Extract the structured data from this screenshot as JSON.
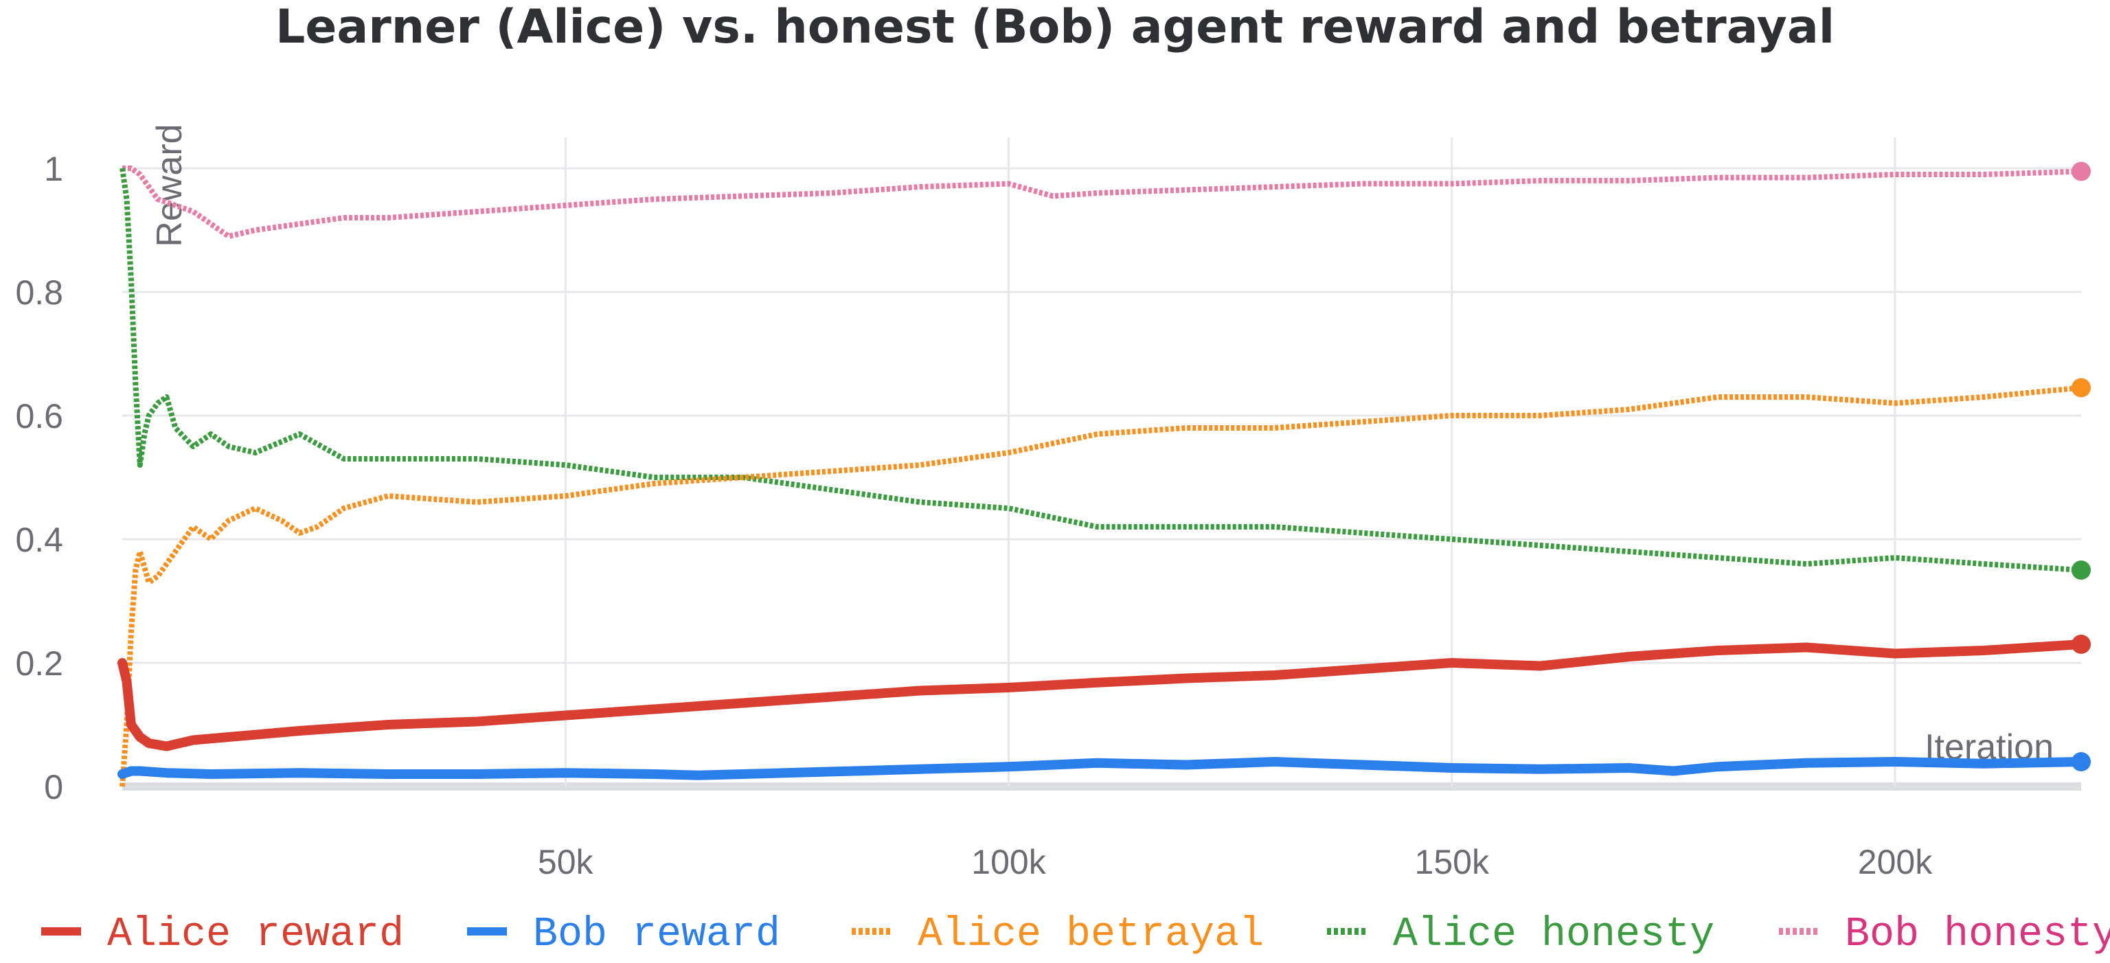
{
  "chart_data": {
    "type": "line",
    "title": "Learner (Alice) vs. honest (Bob) agent reward and betrayal",
    "ylabel": "Reward",
    "xlabel": "Iteration",
    "xlim": [
      0,
      221000
    ],
    "ylim": [
      0,
      1.05
    ],
    "x_ticks": [
      {
        "value": 50000,
        "label": "50k"
      },
      {
        "value": 100000,
        "label": "100k"
      },
      {
        "value": 150000,
        "label": "150k"
      },
      {
        "value": 200000,
        "label": "200k"
      }
    ],
    "y_ticks": [
      {
        "value": 0,
        "label": "0"
      },
      {
        "value": 0.2,
        "label": "0.2"
      },
      {
        "value": 0.4,
        "label": "0.4"
      },
      {
        "value": 0.6,
        "label": "0.6"
      },
      {
        "value": 0.8,
        "label": "0.8"
      },
      {
        "value": 1,
        "label": "1"
      }
    ],
    "grid": true,
    "legend_position": "bottom",
    "series": [
      {
        "name": "Alice reward",
        "color": "#d93f31",
        "style": "solid",
        "x": [
          0,
          500,
          1000,
          2000,
          3000,
          5000,
          8000,
          12000,
          20000,
          30000,
          40000,
          50000,
          60000,
          70000,
          80000,
          90000,
          100000,
          110000,
          120000,
          130000,
          140000,
          150000,
          160000,
          170000,
          180000,
          190000,
          200000,
          210000,
          221000
        ],
        "y": [
          0.2,
          0.17,
          0.1,
          0.08,
          0.07,
          0.065,
          0.075,
          0.08,
          0.09,
          0.1,
          0.105,
          0.115,
          0.125,
          0.135,
          0.145,
          0.155,
          0.16,
          0.168,
          0.175,
          0.18,
          0.19,
          0.2,
          0.195,
          0.21,
          0.22,
          0.225,
          0.215,
          0.22,
          0.23
        ]
      },
      {
        "name": "Bob reward",
        "color": "#2b7fea",
        "style": "solid",
        "x": [
          0,
          1000,
          2000,
          5000,
          10000,
          20000,
          30000,
          40000,
          50000,
          60000,
          65000,
          70000,
          80000,
          90000,
          100000,
          110000,
          120000,
          130000,
          140000,
          150000,
          160000,
          170000,
          175000,
          180000,
          190000,
          200000,
          210000,
          221000
        ],
        "y": [
          0.02,
          0.025,
          0.025,
          0.022,
          0.02,
          0.022,
          0.02,
          0.02,
          0.022,
          0.02,
          0.018,
          0.02,
          0.024,
          0.028,
          0.032,
          0.038,
          0.035,
          0.04,
          0.035,
          0.03,
          0.028,
          0.03,
          0.025,
          0.032,
          0.038,
          0.04,
          0.037,
          0.04
        ]
      },
      {
        "name": "Alice betrayal",
        "color": "#f7901e",
        "style": "dotted",
        "x": [
          0,
          500,
          1000,
          1500,
          2000,
          3000,
          4000,
          6000,
          8000,
          10000,
          12000,
          15000,
          18000,
          20000,
          22000,
          25000,
          30000,
          40000,
          50000,
          60000,
          70000,
          80000,
          90000,
          100000,
          110000,
          120000,
          130000,
          140000,
          150000,
          160000,
          170000,
          180000,
          190000,
          200000,
          210000,
          221000
        ],
        "y": [
          0,
          0.1,
          0.25,
          0.35,
          0.38,
          0.33,
          0.34,
          0.38,
          0.42,
          0.4,
          0.43,
          0.45,
          0.43,
          0.41,
          0.42,
          0.45,
          0.47,
          0.46,
          0.47,
          0.49,
          0.5,
          0.51,
          0.52,
          0.54,
          0.57,
          0.58,
          0.58,
          0.59,
          0.6,
          0.6,
          0.61,
          0.63,
          0.63,
          0.62,
          0.63,
          0.645
        ]
      },
      {
        "name": "Alice honesty",
        "color": "#3a9c3f",
        "style": "dotted",
        "x": [
          0,
          500,
          1000,
          1500,
          2000,
          2500,
          3000,
          4000,
          5000,
          6000,
          8000,
          10000,
          12000,
          15000,
          20000,
          25000,
          30000,
          40000,
          50000,
          60000,
          70000,
          80000,
          90000,
          100000,
          110000,
          120000,
          130000,
          140000,
          150000,
          160000,
          170000,
          180000,
          190000,
          200000,
          210000,
          221000
        ],
        "y": [
          1,
          0.95,
          0.82,
          0.65,
          0.52,
          0.57,
          0.6,
          0.62,
          0.63,
          0.58,
          0.55,
          0.57,
          0.55,
          0.54,
          0.57,
          0.53,
          0.53,
          0.53,
          0.52,
          0.5,
          0.5,
          0.48,
          0.46,
          0.45,
          0.42,
          0.42,
          0.42,
          0.41,
          0.4,
          0.39,
          0.38,
          0.37,
          0.36,
          0.37,
          0.36,
          0.35
        ]
      },
      {
        "name": "Bob honesty",
        "color": "#e67ba4",
        "style": "dotted",
        "x": [
          0,
          1000,
          2000,
          3000,
          4000,
          6000,
          8000,
          10000,
          12000,
          15000,
          20000,
          25000,
          30000,
          40000,
          50000,
          60000,
          70000,
          80000,
          90000,
          100000,
          105000,
          110000,
          120000,
          130000,
          140000,
          150000,
          160000,
          170000,
          180000,
          190000,
          200000,
          210000,
          221000
        ],
        "y": [
          1,
          1,
          0.99,
          0.97,
          0.95,
          0.94,
          0.93,
          0.91,
          0.89,
          0.9,
          0.91,
          0.92,
          0.92,
          0.93,
          0.94,
          0.95,
          0.955,
          0.96,
          0.97,
          0.975,
          0.955,
          0.96,
          0.965,
          0.97,
          0.975,
          0.975,
          0.98,
          0.98,
          0.985,
          0.985,
          0.99,
          0.99,
          0.995
        ]
      }
    ]
  }
}
